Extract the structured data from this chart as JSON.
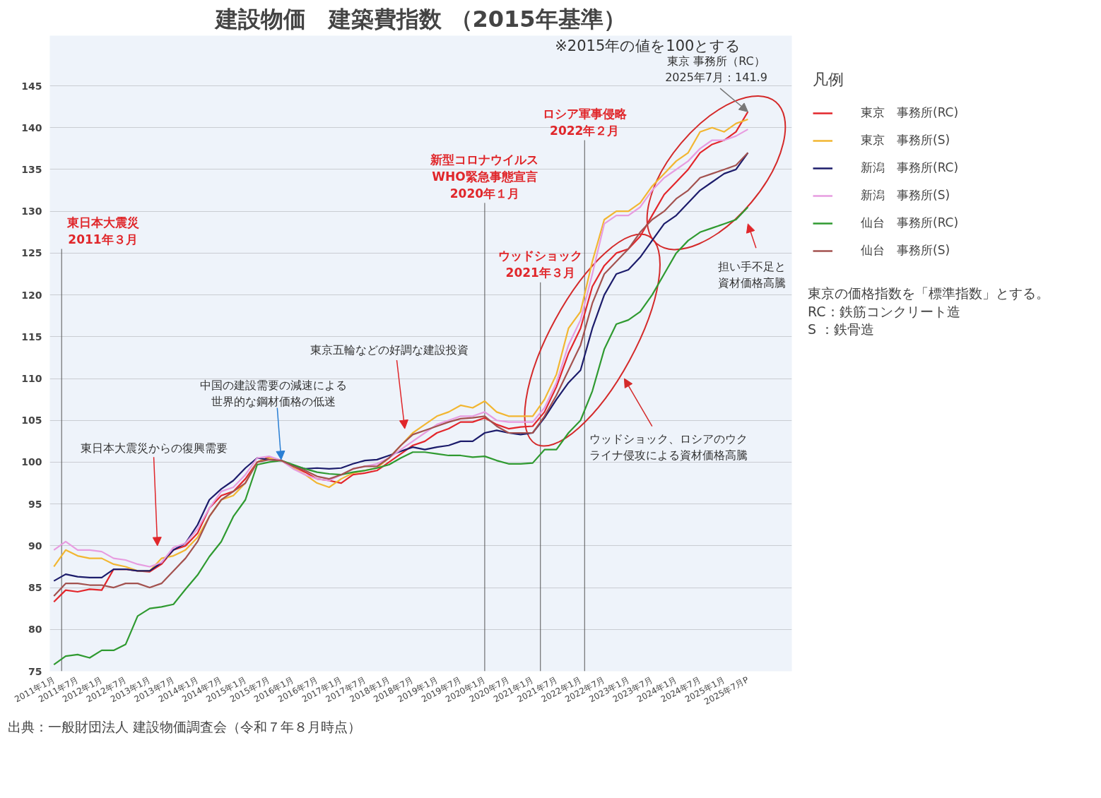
{
  "chart_data": {
    "type": "line",
    "title": "建設物価　建築費指数 （2015年基準）",
    "subtitle": "※2015年の値を100とする",
    "legend_title": "凡例",
    "legend": "right",
    "grid": "y",
    "x": [
      "2011-01",
      "2011-04",
      "2011-07",
      "2011-10",
      "2012-01",
      "2012-04",
      "2012-07",
      "2012-10",
      "2013-01",
      "2013-04",
      "2013-07",
      "2013-10",
      "2014-01",
      "2014-04",
      "2014-07",
      "2014-10",
      "2015-01",
      "2015-04",
      "2015-07",
      "2015-10",
      "2016-01",
      "2016-04",
      "2016-07",
      "2016-10",
      "2017-01",
      "2017-04",
      "2017-07",
      "2017-10",
      "2018-01",
      "2018-04",
      "2018-07",
      "2018-10",
      "2019-01",
      "2019-04",
      "2019-07",
      "2019-10",
      "2020-01",
      "2020-04",
      "2020-07",
      "2020-10",
      "2021-01",
      "2021-04",
      "2021-07",
      "2021-10",
      "2022-01",
      "2022-04",
      "2022-07",
      "2022-10",
      "2023-01",
      "2023-04",
      "2023-07",
      "2023-10",
      "2024-01",
      "2024-04",
      "2024-07",
      "2024-10",
      "2025-01",
      "2025-04",
      "2025-07"
    ],
    "series": [
      {
        "name": "東京　事務所(RC)",
        "color": "#e3262b",
        "values": [
          83.3,
          84.7,
          84.5,
          84.8,
          84.7,
          87.2,
          87.2,
          87.0,
          86.9,
          87.8,
          89.5,
          90.0,
          91.5,
          94.5,
          96.0,
          96.5,
          98.0,
          100.0,
          100.6,
          100.2,
          99.5,
          98.8,
          98.0,
          97.8,
          97.5,
          98.5,
          98.7,
          99.0,
          100.0,
          101.0,
          102.0,
          102.5,
          103.5,
          104.0,
          104.8,
          104.8,
          105.3,
          104.5,
          104.0,
          104.2,
          104.3,
          106.0,
          109.0,
          113.0,
          116.0,
          121.0,
          123.5,
          125.0,
          125.5,
          127.0,
          129.5,
          132.0,
          133.5,
          135.0,
          137.0,
          138.0,
          138.5,
          139.5,
          141.9
        ]
      },
      {
        "name": "東京　事務所(S)",
        "color": "#f2b631",
        "values": [
          87.5,
          89.5,
          88.8,
          88.5,
          88.5,
          87.8,
          87.5,
          87.0,
          87.0,
          88.5,
          88.8,
          89.5,
          91.0,
          93.5,
          95.5,
          96.0,
          97.5,
          100.0,
          100.5,
          100.2,
          99.3,
          98.5,
          97.5,
          97.0,
          98.0,
          98.7,
          99.0,
          99.3,
          100.5,
          102.0,
          103.5,
          104.5,
          105.5,
          106.0,
          106.8,
          106.5,
          107.3,
          106.0,
          105.5,
          105.5,
          105.5,
          107.5,
          110.5,
          116.0,
          118.0,
          124.0,
          129.0,
          130.0,
          130.0,
          131.0,
          133.0,
          134.5,
          136.0,
          137.0,
          139.5,
          140.0,
          139.5,
          140.5,
          141.0
        ]
      },
      {
        "name": "新潟　事務所(RC)",
        "color": "#1c1c6b",
        "values": [
          85.8,
          86.6,
          86.3,
          86.2,
          86.2,
          87.2,
          87.2,
          87.0,
          87.0,
          88.0,
          89.5,
          90.3,
          92.5,
          95.5,
          96.8,
          97.8,
          99.3,
          100.5,
          100.3,
          100.2,
          99.6,
          99.2,
          99.3,
          99.2,
          99.3,
          99.8,
          100.2,
          100.3,
          100.8,
          101.3,
          101.8,
          101.5,
          101.8,
          102.0,
          102.5,
          102.5,
          103.5,
          103.8,
          103.5,
          103.3,
          103.5,
          105.3,
          107.5,
          109.5,
          111.0,
          116.0,
          120.0,
          122.5,
          123.0,
          124.5,
          126.5,
          128.5,
          129.5,
          131.0,
          132.5,
          133.5,
          134.5,
          135.0,
          137.0
        ]
      },
      {
        "name": "新潟　事務所(S)",
        "color": "#e79ce0",
        "values": [
          89.5,
          90.5,
          89.5,
          89.5,
          89.3,
          88.5,
          88.3,
          87.8,
          87.5,
          88.0,
          89.8,
          90.3,
          92.0,
          94.5,
          96.5,
          97.0,
          98.5,
          100.5,
          100.7,
          100.2,
          99.2,
          98.5,
          98.0,
          97.8,
          98.5,
          99.2,
          99.5,
          99.8,
          100.5,
          101.5,
          102.5,
          103.5,
          104.5,
          105.0,
          105.5,
          105.5,
          106.0,
          105.0,
          104.8,
          104.8,
          104.8,
          106.5,
          109.5,
          114.0,
          117.0,
          122.5,
          128.5,
          129.5,
          129.5,
          130.5,
          132.5,
          134.0,
          135.0,
          136.0,
          137.5,
          138.5,
          138.5,
          139.0,
          139.8
        ]
      },
      {
        "name": "仙台　事務所(RC)",
        "color": "#2f9a30",
        "values": [
          75.8,
          76.8,
          77.0,
          76.6,
          77.5,
          77.5,
          78.2,
          81.6,
          82.5,
          82.7,
          83.0,
          84.8,
          86.5,
          88.7,
          90.5,
          93.5,
          95.5,
          99.7,
          100.0,
          100.2,
          99.7,
          99.2,
          98.8,
          98.6,
          98.5,
          98.8,
          99.0,
          99.3,
          99.7,
          100.5,
          101.2,
          101.2,
          101.0,
          100.8,
          100.8,
          100.6,
          100.7,
          100.2,
          99.8,
          99.8,
          99.9,
          101.5,
          101.5,
          103.5,
          105.0,
          108.5,
          113.5,
          116.5,
          117.0,
          118.0,
          120.0,
          122.5,
          125.0,
          126.5,
          127.5,
          128.0,
          128.5,
          129.0,
          130.5
        ]
      },
      {
        "name": "仙台　事務所(S)",
        "color": "#a3524f",
        "values": [
          84.0,
          85.5,
          85.5,
          85.3,
          85.3,
          85.0,
          85.5,
          85.5,
          85.0,
          85.5,
          87.0,
          88.5,
          90.5,
          93.5,
          95.5,
          96.5,
          97.5,
          100.0,
          100.3,
          100.2,
          99.5,
          99.0,
          98.3,
          98.0,
          98.5,
          99.2,
          99.5,
          99.5,
          100.5,
          102.0,
          103.3,
          103.8,
          104.3,
          104.8,
          105.2,
          105.3,
          105.5,
          104.3,
          103.5,
          103.5,
          103.5,
          105.5,
          108.0,
          111.0,
          114.0,
          119.0,
          122.5,
          124.0,
          125.5,
          127.5,
          129.0,
          130.0,
          131.5,
          132.5,
          134.0,
          134.5,
          135.0,
          135.5,
          137.0
        ]
      }
    ],
    "xlim": [
      "2010-12",
      "2026-06"
    ],
    "ylim": [
      75,
      151
    ],
    "xticks": [
      {
        "value": "2011-01",
        "label": "2011年1月"
      },
      {
        "value": "2011-07",
        "label": "2011年7月"
      },
      {
        "value": "2012-01",
        "label": "2012年1月"
      },
      {
        "value": "2012-07",
        "label": "2012年7月"
      },
      {
        "value": "2013-01",
        "label": "2013年1月"
      },
      {
        "value": "2013-07",
        "label": "2013年7月"
      },
      {
        "value": "2014-01",
        "label": "2014年1月"
      },
      {
        "value": "2014-07",
        "label": "2014年7月"
      },
      {
        "value": "2015-01",
        "label": "2015年1月"
      },
      {
        "value": "2015-07",
        "label": "2015年7月"
      },
      {
        "value": "2016-01",
        "label": "2016年1月"
      },
      {
        "value": "2016-07",
        "label": "2016年7月"
      },
      {
        "value": "2017-01",
        "label": "2017年1月"
      },
      {
        "value": "2017-07",
        "label": "2017年7月"
      },
      {
        "value": "2018-01",
        "label": "2018年1月"
      },
      {
        "value": "2018-07",
        "label": "2018年7月"
      },
      {
        "value": "2019-01",
        "label": "2019年1月"
      },
      {
        "value": "2019-07",
        "label": "2019年7月"
      },
      {
        "value": "2020-01",
        "label": "2020年1月"
      },
      {
        "value": "2020-07",
        "label": "2020年7月"
      },
      {
        "value": "2021-01",
        "label": "2021年1月"
      },
      {
        "value": "2021-07",
        "label": "2021年7月"
      },
      {
        "value": "2022-01",
        "label": "2022年1月"
      },
      {
        "value": "2022-07",
        "label": "2022年7月"
      },
      {
        "value": "2023-01",
        "label": "2023年1月"
      },
      {
        "value": "2023-07",
        "label": "2023年7月"
      },
      {
        "value": "2024-01",
        "label": "2024年1月"
      },
      {
        "value": "2024-07",
        "label": "2024年7月"
      },
      {
        "value": "2025-01",
        "label": "2025年1月"
      },
      {
        "value": "2025-07",
        "label": "2025年7月P"
      }
    ],
    "yticks": [
      75,
      80,
      85,
      90,
      95,
      100,
      105,
      110,
      115,
      120,
      125,
      130,
      135,
      140,
      145
    ],
    "ref_lines": [
      {
        "axis": "x",
        "value": "2011-03",
        "label": "東日本大震災\n2011年３月",
        "color": "#555555"
      },
      {
        "axis": "x",
        "value": "2020-01",
        "label": "新型コロナウイルス\nWHO緊急事態宣言\n2020年１月",
        "color": "#555555"
      },
      {
        "axis": "x",
        "value": "2021-03",
        "label": "ウッドショック\n2021年３月",
        "color": "#555555"
      },
      {
        "axis": "x",
        "value": "2022-02",
        "label": "ロシア軍事侵略\n2022年２月",
        "color": "#555555"
      }
    ],
    "annotations": [
      "出典：一般財団法人 建設物価調査会（令和７年８月時点）",
      "東京の価格指数を「標準指数」とする。\nRC：鉄筋コンクリート造\nS ：鉄骨造",
      "東日本大震災からの復興需要",
      {
        "text": "中国の建設需要の減速による世界的な鋼材価格の低迷",
        "x": "2015-10",
        "y": 100.3
      },
      "東京五輪などの好調な建設投資",
      "ウッドショック、ロシアのウクライナ侵攻による資材価格高騰",
      "担い手不足と資材価格高騰",
      {
        "text": "東京 事務所（RC）\n2025年7月：141.9",
        "x": "2025-07",
        "y": 141.9
      }
    ]
  }
}
